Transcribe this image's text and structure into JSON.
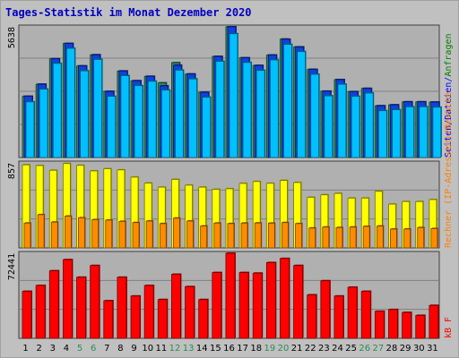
{
  "page": {
    "title": "Tages-Statistik im Monat Dezember 2020"
  },
  "colors": {
    "background": "#c0c0c0",
    "plot_bg": "#b0b0b0",
    "anfragen": "#2e8b57",
    "dateien": "#1040e0",
    "seiten": "#00c0ff",
    "besuche": "#ffff00",
    "rechner": "#ff8c00",
    "kb": "#ff0000",
    "label_red": "#ff0000",
    "label_orange": "#ff8000",
    "label_blue": "#0000ff",
    "label_green": "#008000",
    "weekend_day": "#2e8b57"
  },
  "chart_data": {
    "type": "bar",
    "title": "Tages-Statistik im Monat Dezember 2020",
    "categories": [
      "1",
      "2",
      "3",
      "4",
      "5",
      "6",
      "7",
      "8",
      "9",
      "10",
      "11",
      "12",
      "13",
      "14",
      "15",
      "16",
      "17",
      "18",
      "19",
      "20",
      "21",
      "22",
      "23",
      "24",
      "25",
      "26",
      "27",
      "28",
      "29",
      "30",
      "31"
    ],
    "weekend_days": [
      "5",
      "6",
      "12",
      "13",
      "19",
      "20",
      "26",
      "27"
    ],
    "panels": [
      {
        "name": "top",
        "ymax_label": "5638",
        "ylim": [
          0,
          5638
        ],
        "right_labels": [
          {
            "text": "Seiten",
            "color_key": "label_blue"
          },
          {
            "text": "/",
            "color_key": "label_blue"
          },
          {
            "text": "Dateien",
            "color_key": "label_blue"
          },
          {
            "text": "/",
            "color_key": "label_blue"
          },
          {
            "text": "Anfragen",
            "color_key": "label_green"
          }
        ],
        "series": [
          {
            "name": "Anfragen",
            "color_key": "anfragen",
            "values": [
              2640,
              3160,
              4260,
              4920,
              3950,
              4430,
              2850,
              3730,
              3310,
              3500,
              3220,
              4090,
              3600,
              2810,
              4360,
              5638,
              4300,
              3970,
              4420,
              5110,
              4770,
              3800,
              2860,
              3360,
              2840,
              2980,
              2230,
              2270,
              2400,
              2400,
              2390
            ]
          },
          {
            "name": "Dateien",
            "color_key": "dateien",
            "values": [
              2640,
              3160,
              4260,
              4920,
              3950,
              4430,
              2850,
              3730,
              3310,
              3500,
              3090,
              3980,
              3600,
              2810,
              4360,
              5638,
              4300,
              3970,
              4420,
              5100,
              4770,
              3800,
              2860,
              3360,
              2840,
              2980,
              2230,
              2270,
              2400,
              2400,
              2390
            ]
          },
          {
            "name": "Seiten",
            "color_key": "seiten",
            "values": [
              2400,
              2950,
              4060,
              4710,
              3740,
              4230,
              2640,
              3530,
              3100,
              3290,
              2910,
              3770,
              3390,
              2600,
              4150,
              5340,
              4100,
              3760,
              4210,
              4880,
              4570,
              3590,
              2660,
              3160,
              2640,
              2780,
              2020,
              2060,
              2190,
              2190,
              2170
            ]
          }
        ]
      },
      {
        "name": "middle",
        "ymax_label": "857",
        "ylim": [
          0,
          857
        ],
        "right_labels": [
          {
            "text": "Rechner (IP-Adressen)",
            "color_key": "label_orange"
          },
          {
            "text": "/",
            "color_key": "label_orange"
          },
          {
            "text": "Besuche",
            "color_key": "label_orange"
          }
        ],
        "series": [
          {
            "name": "Besuche",
            "color_key": "besuche",
            "values": [
              837,
              830,
              782,
              850,
              832,
              776,
              798,
              786,
              713,
              653,
              612,
              690,
              632,
              612,
              590,
              596,
              650,
              669,
              651,
              680,
              659,
              510,
              535,
              549,
              502,
              502,
              570,
              441,
              467,
              467,
              487
            ]
          },
          {
            "name": "Rechner",
            "color_key": "rechner",
            "values": [
              250,
              335,
              260,
              320,
              304,
              285,
              280,
              267,
              255,
              271,
              245,
              300,
              271,
              220,
              250,
              245,
              250,
              251,
              249,
              255,
              245,
              200,
              210,
              205,
              210,
              217,
              220,
              190,
              190,
              205,
              195
            ]
          }
        ]
      },
      {
        "name": "bottom",
        "ymax_label": "72441",
        "ylim": [
          0,
          72441
        ],
        "right_labels": [
          {
            "text": "kB F",
            "color_key": "label_red"
          }
        ],
        "series": [
          {
            "name": "kB F",
            "color_key": "kb",
            "values": [
              40000,
              45000,
              57500,
              67000,
              52000,
              62000,
              32000,
              52000,
              36000,
              45000,
              33000,
              54500,
              44000,
              33000,
              56000,
              72441,
              56000,
              55500,
              64500,
              68000,
              62000,
              37000,
              49000,
              36000,
              43500,
              40000,
              23000,
              24500,
              22000,
              19500,
              28000
            ]
          }
        ]
      }
    ]
  }
}
